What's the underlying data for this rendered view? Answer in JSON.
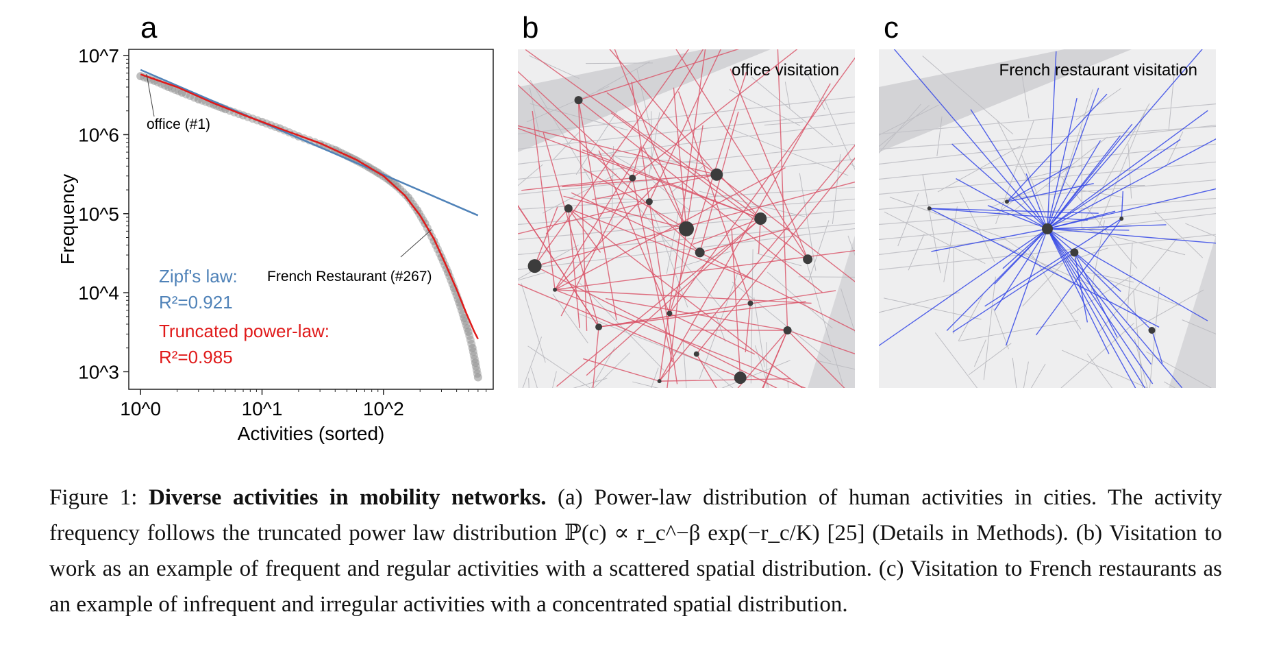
{
  "panels": {
    "a": {
      "letter": "a",
      "chart_data": {
        "type": "scatter",
        "xscale": "log",
        "yscale": "log",
        "xlabel": "Activities (sorted)",
        "ylabel": "Frequency",
        "xlim": [
          0.8,
          800
        ],
        "ylim": [
          600,
          12000000
        ],
        "xticks": [
          "10^0",
          "10^1",
          "10^2"
        ],
        "yticks": [
          "10^3",
          "10^4",
          "10^5",
          "10^6",
          "10^7"
        ],
        "series": [
          {
            "kind": "points",
            "color": "#8a8a8a",
            "x": [
              1,
              1.3,
              1.7,
              2.2,
              3,
              4,
              5,
              7,
              10,
              14,
              20,
              30,
              40,
              50,
              60,
              75,
              90,
              110,
              130,
              160,
              190,
              220,
              260,
              300,
              340,
              380,
              420,
              460,
              500,
              540,
              570,
              600
            ],
            "y": [
              5500000,
              4800000,
              4000000,
              3400000,
              2800000,
              2400000,
              2100000,
              1750000,
              1450000,
              1200000,
              950000,
              760000,
              640000,
              540000,
              470000,
              390000,
              330000,
              270000,
              220000,
              160000,
              110000,
              75000,
              45000,
              28000,
              18000,
              11500,
              7500,
              4800,
              3200,
              2000,
              1300,
              850
            ]
          },
          {
            "kind": "line",
            "color": "#4f82b8",
            "x": [
              1,
              600
            ],
            "y": [
              6600000,
              95000
            ]
          },
          {
            "kind": "line",
            "color": "#e01a1a",
            "x": [
              1,
              2,
              4,
              8,
              15,
              30,
              60,
              100,
              150,
              200,
              260,
              320,
              400,
              480,
              560,
              600
            ],
            "y": [
              5800000,
              4000000,
              2500000,
              1650000,
              1150000,
              780000,
              480000,
              300000,
              170000,
              95000,
              48000,
              24000,
              11000,
              5500,
              3200,
              2600
            ]
          }
        ],
        "annotations": [
          {
            "text": "office (#1)",
            "x": 1,
            "y": 5500000
          },
          {
            "text": "French Restaurant (#267)",
            "x": 300,
            "y": 25000
          }
        ],
        "legend": {
          "zipf_label": "Zipf's law:",
          "zipf_r2": "R²=0.921",
          "trunc_label": "Truncated power-law:",
          "trunc_r2": "R²=0.985",
          "zipf_color": "#4f82b8",
          "trunc_color": "#e01a1a"
        }
      }
    },
    "b": {
      "letter": "b",
      "title": "office visitation",
      "line_color": "#d9566a"
    },
    "c": {
      "letter": "c",
      "title": "French restaurant visitation",
      "line_color": "#3446e6"
    }
  },
  "caption": {
    "label": "Figure 1:",
    "bold": "Diverse activities in mobility networks.",
    "rest": "(a) Power-law distribution of human activities in cities. The activity frequency follows the truncated power law distribution ℙ(c) ∝ r_c^−β exp(−r_c/K) [25] (Details in Methods). (b) Visitation to work as an example of frequent and regular activities with a scattered spatial distribution. (c) Visitation to French restaurants as an example of infrequent and irregular activities with a concentrated spatial distribution."
  }
}
